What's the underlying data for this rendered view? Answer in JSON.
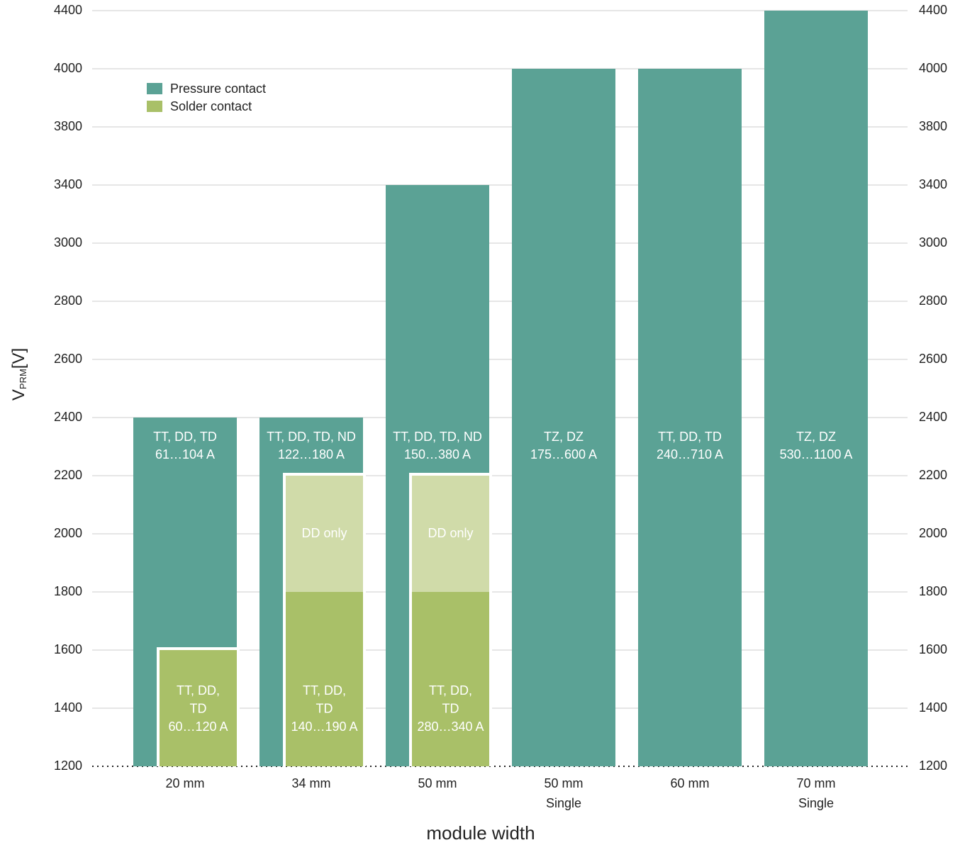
{
  "chart_data": {
    "type": "bar",
    "y_label": {
      "main": "V",
      "sub": "PRM",
      "unit": "[V]"
    },
    "x_label": "module width",
    "categories": [
      [
        "20 mm"
      ],
      [
        "34 mm"
      ],
      [
        "50 mm"
      ],
      [
        "50 mm",
        "Single"
      ],
      [
        "60 mm"
      ],
      [
        "70 mm",
        "Single"
      ]
    ],
    "ylim": [
      1200,
      4400
    ],
    "yticks": [
      1200,
      1400,
      1600,
      1800,
      2000,
      2200,
      2400,
      2600,
      2800,
      3000,
      3400,
      3800,
      4000,
      4400
    ],
    "grid": true,
    "legend": "top-left",
    "series": [
      {
        "name": "Pressure contact",
        "color": "#5ba295",
        "values": [
          2400,
          2400,
          3400,
          4000,
          4000,
          4400
        ],
        "bar_labels": [
          [
            "TT, DD, TD",
            "61…104 A"
          ],
          [
            "TT, DD, TD, ND",
            "122…180 A"
          ],
          [
            "TT, DD, TD, ND",
            "150…380 A"
          ],
          [
            "TZ, DZ",
            "175…600 A"
          ],
          [
            "TT, DD, TD",
            "240…710 A"
          ],
          [
            "TZ, DZ",
            "530…1100 A"
          ]
        ]
      },
      {
        "name": "Solder contact",
        "color": "#a9c068",
        "values": [
          1600,
          1800,
          1800,
          null,
          null,
          null
        ],
        "bar_labels": [
          [
            "TT, DD,",
            "TD",
            "60…120 A"
          ],
          [
            "TT, DD,",
            "TD",
            "140…190 A"
          ],
          [
            "TT, DD,",
            "TD",
            "280…340 A"
          ],
          null,
          null,
          null
        ]
      }
    ],
    "dd_only": {
      "label": "DD only",
      "color": "#d0dba9",
      "values": [
        null,
        2200,
        2200,
        null,
        null,
        null
      ]
    }
  }
}
